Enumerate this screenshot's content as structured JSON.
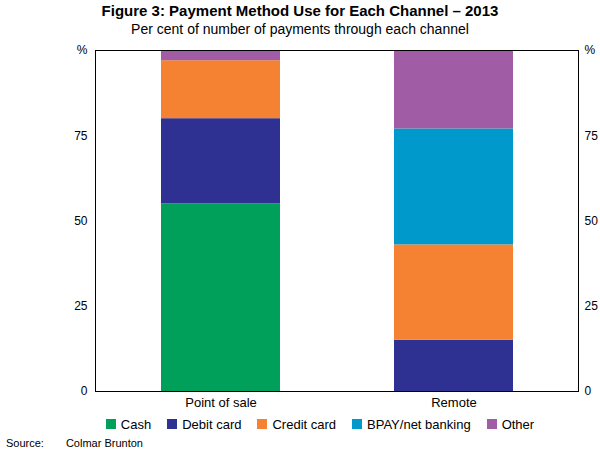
{
  "chart_data": {
    "type": "bar",
    "stacked": true,
    "title": "Figure 3: Payment Method Use for Each Channel – 2013",
    "subtitle": "Per cent of number of payments through each channel",
    "categories": [
      "Point of sale",
      "Remote"
    ],
    "series": [
      {
        "name": "Cash",
        "color": "#00a05a",
        "values": [
          55,
          0
        ]
      },
      {
        "name": "Debit card",
        "color": "#2e3192",
        "values": [
          25,
          15
        ]
      },
      {
        "name": "Credit card",
        "color": "#f58232",
        "values": [
          17,
          28
        ]
      },
      {
        "name": "BPAY/net banking",
        "color": "#0099cc",
        "values": [
          0,
          34
        ]
      },
      {
        "name": "Other",
        "color": "#a05da5",
        "values": [
          3,
          23
        ]
      }
    ],
    "ylim": [
      0,
      100
    ],
    "yticks": [
      0,
      25,
      50,
      75,
      {
        "value": 100,
        "label": "%"
      }
    ],
    "grid": false,
    "legend": "bottom",
    "source_label": "Source:",
    "source": "Colmar Brunton"
  }
}
